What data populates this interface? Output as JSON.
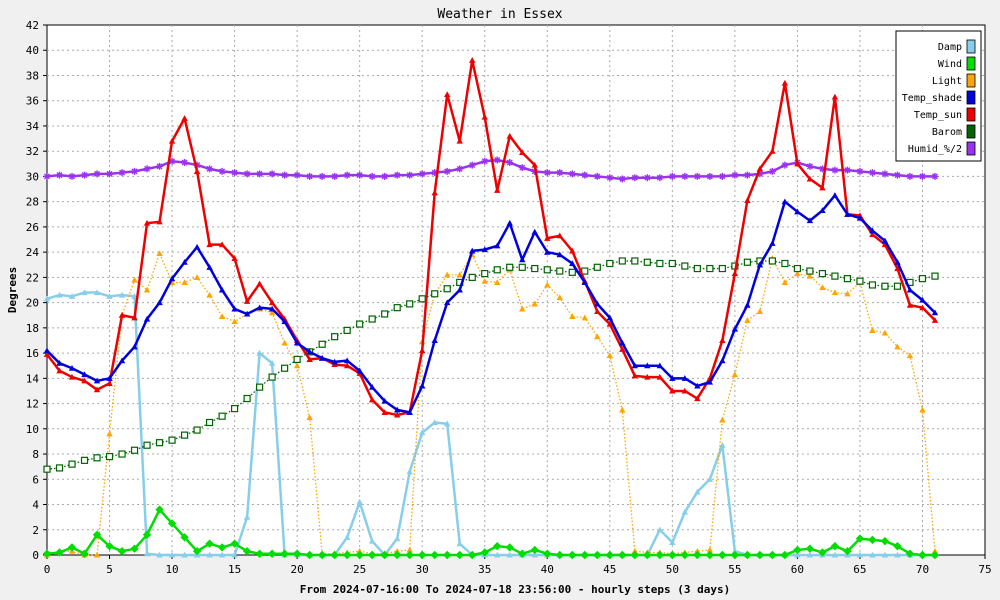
{
  "chart_data": {
    "type": "line",
    "title": "Weather in Essex",
    "xlabel": "From 2024-07-16:00 To 2024-07-18 23:56:00 - hourly steps (3 days)",
    "ylabel": "Degrees",
    "xlim": [
      0,
      75
    ],
    "ylim": [
      0,
      42
    ],
    "xticks": [
      0,
      5,
      10,
      15,
      20,
      25,
      30,
      35,
      40,
      45,
      50,
      55,
      60,
      65,
      70,
      75
    ],
    "yticks": [
      0,
      2,
      4,
      6,
      8,
      10,
      12,
      14,
      16,
      18,
      20,
      22,
      24,
      26,
      28,
      30,
      32,
      34,
      36,
      38,
      40,
      42
    ],
    "grid": true,
    "legend_position": "top-right",
    "series": [
      {
        "name": "Damp",
        "color": "#87ceeb",
        "style": "solid",
        "marker": "triangle",
        "values": [
          20.3,
          20.6,
          20.5,
          20.8,
          20.8,
          20.5,
          20.6,
          20.5,
          0.1,
          0,
          0,
          0,
          0,
          0,
          0,
          0,
          3,
          16,
          15.2,
          0,
          0,
          0,
          0,
          0,
          1.4,
          4.2,
          1.1,
          0,
          1.3,
          6.6,
          9.7,
          10.5,
          10.4,
          0.9,
          0,
          0,
          0,
          0,
          0,
          0,
          0,
          0,
          0,
          0,
          0,
          0,
          0,
          0,
          0,
          2,
          1,
          3.4,
          5,
          6,
          8.7,
          0.3,
          0,
          0,
          0,
          0,
          0,
          0,
          0,
          0,
          0,
          0,
          0,
          0,
          0,
          0,
          0,
          0
        ]
      },
      {
        "name": "Wind",
        "color": "#00dd00",
        "style": "solid",
        "marker": "diamond",
        "values": [
          0.1,
          0.2,
          0.6,
          0.1,
          1.6,
          0.7,
          0.3,
          0.5,
          1.6,
          3.6,
          2.5,
          1.4,
          0.3,
          0.9,
          0.6,
          0.9,
          0.3,
          0.1,
          0.1,
          0.1,
          0.1,
          0,
          0,
          0,
          0,
          0,
          0,
          0,
          0,
          0,
          0,
          0,
          0,
          0,
          0,
          0.2,
          0.7,
          0.6,
          0.1,
          0.4,
          0.1,
          0,
          0,
          0,
          0,
          0,
          0,
          0,
          0,
          0,
          0,
          0,
          0,
          0,
          0,
          0,
          0,
          0,
          0,
          0,
          0.4,
          0.5,
          0.2,
          0.7,
          0.3,
          1.3,
          1.2,
          1.1,
          0.7,
          0.1,
          0,
          0
        ]
      },
      {
        "name": "Light",
        "color": "#ffa500",
        "style": "dotted",
        "marker": "triangle",
        "values": [
          0,
          0.3,
          0.3,
          0,
          0,
          9.6,
          19,
          21.8,
          21,
          23.9,
          21.6,
          21.6,
          22,
          20.6,
          18.9,
          18.5,
          19.1,
          19.5,
          19.2,
          16.8,
          15,
          10.9,
          0.1,
          0.1,
          0.2,
          0.3,
          0.1,
          0.1,
          0.3,
          0.4,
          16.9,
          20.7,
          22.2,
          22.2,
          23.8,
          21.7,
          21.6,
          22.6,
          19.5,
          19.9,
          21.4,
          20.4,
          18.9,
          18.8,
          17.3,
          15.8,
          11.5,
          0.3,
          0.2,
          0.2,
          0.1,
          0.2,
          0.3,
          0.4,
          10.7,
          14.3,
          18.6,
          19.3,
          23.5,
          21.6,
          22.3,
          22.1,
          21.2,
          20.8,
          20.7,
          21.6,
          17.8,
          17.6,
          16.5,
          15.8,
          11.5,
          0.3
        ]
      },
      {
        "name": "Temp_shade",
        "color": "#0000dd",
        "style": "solid",
        "marker": "triangle",
        "values": [
          16.2,
          15.2,
          14.8,
          14.3,
          13.8,
          14,
          15.4,
          16.5,
          18.7,
          20,
          21.9,
          23.2,
          24.4,
          22.8,
          21,
          19.5,
          19.1,
          19.6,
          19.5,
          18.5,
          16.8,
          16.1,
          15.6,
          15.3,
          15.4,
          14.6,
          13.3,
          12.2,
          11.5,
          11.3,
          13.4,
          17,
          20,
          21,
          24.1,
          24.2,
          24.5,
          26.3,
          23.4,
          25.6,
          24,
          23.8,
          23.1,
          21.6,
          19.9,
          18.8,
          16.8,
          15,
          15,
          15,
          14,
          14,
          13.4,
          13.7,
          15.4,
          17.9,
          19.8,
          23,
          24.7,
          28,
          27.2,
          26.5,
          27.3,
          28.5,
          27,
          26.7,
          25.7,
          24.9,
          23.2,
          21,
          20.2,
          19.2
        ]
      },
      {
        "name": "Temp_sun",
        "color": "#ee0000",
        "style": "solid",
        "marker": "triangle",
        "values": [
          15.9,
          14.6,
          14.1,
          13.8,
          13.1,
          13.6,
          19,
          18.8,
          26.3,
          26.4,
          32.8,
          34.6,
          30.4,
          24.6,
          24.6,
          23.5,
          20.1,
          21.5,
          20,
          18.7,
          17,
          15.5,
          15.6,
          15.1,
          15,
          14.4,
          12.3,
          11.3,
          11.1,
          11.3,
          16.2,
          28.7,
          36.5,
          32.8,
          39.2,
          34.7,
          28.9,
          33.2,
          31.9,
          30.9,
          25.1,
          25.3,
          24.1,
          21.7,
          19.3,
          18.3,
          16.3,
          14.2,
          14.1,
          14.1,
          13,
          13,
          12.4,
          14,
          17,
          22.3,
          28.1,
          30.6,
          32,
          37.4,
          31,
          29.8,
          29.1,
          36.3,
          27,
          26.9,
          25.4,
          24.6,
          22.7,
          19.8,
          19.6,
          18.6
        ]
      },
      {
        "name": "Barom",
        "color": "#006400",
        "style": "dotted",
        "marker": "square",
        "values": [
          6.8,
          6.9,
          7.2,
          7.5,
          7.7,
          7.8,
          8,
          8.3,
          8.7,
          8.9,
          9.1,
          9.5,
          9.9,
          10.5,
          11,
          11.6,
          12.4,
          13.3,
          14.1,
          14.8,
          15.5,
          16.1,
          16.7,
          17.3,
          17.8,
          18.3,
          18.7,
          19.1,
          19.6,
          19.9,
          20.3,
          20.7,
          21.1,
          21.6,
          22,
          22.3,
          22.6,
          22.8,
          22.8,
          22.7,
          22.6,
          22.5,
          22.4,
          22.5,
          22.8,
          23.1,
          23.3,
          23.3,
          23.2,
          23.1,
          23.1,
          22.9,
          22.7,
          22.7,
          22.7,
          22.9,
          23.2,
          23.3,
          23.3,
          23.1,
          22.7,
          22.5,
          22.3,
          22.1,
          21.9,
          21.7,
          21.4,
          21.3,
          21.3,
          21.6,
          21.9,
          22.1
        ]
      },
      {
        "name": "Humid_%/2",
        "color": "#9933ee",
        "style": "solid",
        "marker": "star",
        "values": [
          30,
          30.1,
          30,
          30.1,
          30.2,
          30.2,
          30.3,
          30.4,
          30.6,
          30.8,
          31.2,
          31.1,
          30.9,
          30.6,
          30.4,
          30.3,
          30.2,
          30.2,
          30.2,
          30.1,
          30.1,
          30,
          30,
          30,
          30.1,
          30.1,
          30,
          30,
          30.1,
          30.1,
          30.2,
          30.3,
          30.4,
          30.6,
          30.9,
          31.2,
          31.3,
          31.1,
          30.7,
          30.4,
          30.3,
          30.3,
          30.2,
          30.1,
          30,
          29.9,
          29.8,
          29.9,
          29.9,
          29.9,
          30,
          30,
          30,
          30,
          30,
          30.1,
          30.1,
          30.2,
          30.4,
          30.9,
          31.1,
          30.8,
          30.6,
          30.5,
          30.5,
          30.4,
          30.3,
          30.2,
          30.1,
          30,
          30,
          30
        ]
      }
    ]
  }
}
